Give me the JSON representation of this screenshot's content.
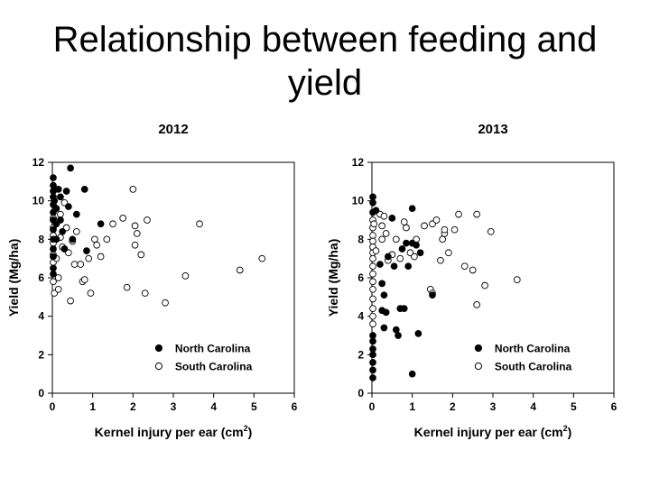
{
  "slide": {
    "title_line1": "Relationship between feeding and",
    "title_line2": "yield"
  },
  "chart_data": [
    {
      "type": "scatter",
      "title": "2012",
      "xlabel": "Kernel injury per ear (cm",
      "xlabel_sup": "2",
      "xlabel_suffix": ")",
      "ylabel": "Yield (Mg/ha)",
      "xlim": [
        0,
        6
      ],
      "ylim": [
        0,
        12
      ],
      "xticks": [
        "0",
        "1",
        "2",
        "3",
        "4",
        "5",
        "6"
      ],
      "yticks": [
        "0",
        "2",
        "4",
        "6",
        "8",
        "10",
        "12"
      ],
      "legend_position": "bottom-right",
      "series": [
        {
          "name": "North Carolina",
          "marker": "filled-circle",
          "color": "#000000",
          "points": [
            [
              0,
              11.2
            ],
            [
              0,
              10.8
            ],
            [
              0,
              10.5
            ],
            [
              0,
              10.2
            ],
            [
              0,
              9.8
            ],
            [
              0,
              9.4
            ],
            [
              0,
              9.0
            ],
            [
              0,
              8.5
            ],
            [
              0,
              8.0
            ],
            [
              0,
              7.5
            ],
            [
              0,
              7.1
            ],
            [
              0,
              6.5
            ],
            [
              0,
              6.2
            ],
            [
              0.05,
              10.0
            ],
            [
              0.1,
              9.6
            ],
            [
              0.1,
              8.8
            ],
            [
              0.1,
              8.0
            ],
            [
              0.15,
              10.6
            ],
            [
              0.2,
              10.2
            ],
            [
              0.2,
              9.0
            ],
            [
              0.25,
              8.4
            ],
            [
              0.3,
              7.5
            ],
            [
              0.35,
              10.5
            ],
            [
              0.4,
              9.7
            ],
            [
              0.45,
              11.7
            ],
            [
              0.5,
              8.0
            ],
            [
              0.6,
              9.3
            ],
            [
              0.8,
              10.6
            ],
            [
              0.85,
              7.4
            ],
            [
              1.2,
              8.8
            ]
          ]
        },
        {
          "name": "South Carolina",
          "marker": "open-circle",
          "color": "#ffffff",
          "points": [
            [
              0,
              9.1
            ],
            [
              0,
              8.6
            ],
            [
              0,
              8.2
            ],
            [
              0,
              7.8
            ],
            [
              0,
              7.2
            ],
            [
              0,
              6.8
            ],
            [
              0,
              5.8
            ],
            [
              0.05,
              5.2
            ],
            [
              0.1,
              8.9
            ],
            [
              0.1,
              7.0
            ],
            [
              0.15,
              6.0
            ],
            [
              0.15,
              5.4
            ],
            [
              0.2,
              9.3
            ],
            [
              0.2,
              8.1
            ],
            [
              0.25,
              7.6
            ],
            [
              0.3,
              9.9
            ],
            [
              0.35,
              8.6
            ],
            [
              0.4,
              7.3
            ],
            [
              0.45,
              4.8
            ],
            [
              0.5,
              7.9
            ],
            [
              0.55,
              6.7
            ],
            [
              0.6,
              8.4
            ],
            [
              0.7,
              6.7
            ],
            [
              0.75,
              5.8
            ],
            [
              0.8,
              5.9
            ],
            [
              0.9,
              7.0
            ],
            [
              0.95,
              5.2
            ],
            [
              1.05,
              8.0
            ],
            [
              1.1,
              7.7
            ],
            [
              1.2,
              7.1
            ],
            [
              1.35,
              8.0
            ],
            [
              1.5,
              8.8
            ],
            [
              1.75,
              9.1
            ],
            [
              1.85,
              5.5
            ],
            [
              2.0,
              10.6
            ],
            [
              2.05,
              8.7
            ],
            [
              2.05,
              7.7
            ],
            [
              2.1,
              8.3
            ],
            [
              2.2,
              7.2
            ],
            [
              2.3,
              5.2
            ],
            [
              2.35,
              9.0
            ],
            [
              2.8,
              4.7
            ],
            [
              3.3,
              6.1
            ],
            [
              3.65,
              8.8
            ],
            [
              4.65,
              6.4
            ],
            [
              5.2,
              7.0
            ]
          ]
        }
      ]
    },
    {
      "type": "scatter",
      "title": "2013",
      "xlabel": "Kernel injury per ear (cm",
      "xlabel_sup": "2",
      "xlabel_suffix": ")",
      "ylabel": "Yield (Mg/ha)",
      "xlim": [
        0,
        6
      ],
      "ylim": [
        0,
        12
      ],
      "xticks": [
        "0",
        "1",
        "2",
        "3",
        "4",
        "5",
        "6"
      ],
      "yticks": [
        "0",
        "2",
        "4",
        "6",
        "8",
        "10",
        "12"
      ],
      "legend_position": "bottom-right",
      "series": [
        {
          "name": "North Carolina",
          "marker": "filled-circle",
          "color": "#000000",
          "points": [
            [
              0,
              10.2
            ],
            [
              0,
              9.9
            ],
            [
              0,
              9.4
            ],
            [
              0,
              3.0
            ],
            [
              0,
              2.7
            ],
            [
              0,
              2.3
            ],
            [
              0,
              2.0
            ],
            [
              0,
              1.6
            ],
            [
              0,
              1.2
            ],
            [
              0,
              0.8
            ],
            [
              0.1,
              9.5
            ],
            [
              0.2,
              6.7
            ],
            [
              0.25,
              5.7
            ],
            [
              0.25,
              4.3
            ],
            [
              0.3,
              5.1
            ],
            [
              0.3,
              3.4
            ],
            [
              0.35,
              4.2
            ],
            [
              0.4,
              7.1
            ],
            [
              0.5,
              9.1
            ],
            [
              0.55,
              6.6
            ],
            [
              0.6,
              3.3
            ],
            [
              0.65,
              3.0
            ],
            [
              0.7,
              4.4
            ],
            [
              0.75,
              7.5
            ],
            [
              0.8,
              4.4
            ],
            [
              0.85,
              7.8
            ],
            [
              0.9,
              6.6
            ],
            [
              1.0,
              9.6
            ],
            [
              1.0,
              7.8
            ],
            [
              1.0,
              1.0
            ],
            [
              1.1,
              7.7
            ],
            [
              1.15,
              3.1
            ],
            [
              1.2,
              7.3
            ],
            [
              1.5,
              5.1
            ]
          ]
        },
        {
          "name": "South Carolina",
          "marker": "open-circle",
          "color": "#ffffff",
          "points": [
            [
              0,
              9.0
            ],
            [
              0,
              8.6
            ],
            [
              0,
              8.2
            ],
            [
              0,
              7.9
            ],
            [
              0,
              7.6
            ],
            [
              0,
              7.3
            ],
            [
              0,
              7.0
            ],
            [
              0,
              6.6
            ],
            [
              0,
              6.2
            ],
            [
              0,
              5.8
            ],
            [
              0,
              5.4
            ],
            [
              0,
              4.9
            ],
            [
              0,
              4.4
            ],
            [
              0,
              4.0
            ],
            [
              0,
              3.6
            ],
            [
              0.05,
              8.8
            ],
            [
              0.1,
              7.4
            ],
            [
              0.2,
              9.3
            ],
            [
              0.25,
              8.7
            ],
            [
              0.25,
              8.0
            ],
            [
              0.3,
              9.2
            ],
            [
              0.35,
              8.3
            ],
            [
              0.4,
              6.9
            ],
            [
              0.5,
              7.2
            ],
            [
              0.6,
              8.0
            ],
            [
              0.7,
              7.0
            ],
            [
              0.8,
              8.9
            ],
            [
              0.85,
              8.6
            ],
            [
              0.95,
              7.3
            ],
            [
              1.05,
              7.1
            ],
            [
              1.1,
              8.0
            ],
            [
              1.3,
              8.7
            ],
            [
              1.45,
              5.4
            ],
            [
              1.5,
              5.2
            ],
            [
              1.5,
              8.8
            ],
            [
              1.6,
              9.0
            ],
            [
              1.7,
              6.9
            ],
            [
              1.75,
              8.0
            ],
            [
              1.8,
              8.3
            ],
            [
              1.8,
              8.5
            ],
            [
              1.9,
              7.3
            ],
            [
              2.05,
              8.5
            ],
            [
              2.15,
              9.3
            ],
            [
              2.3,
              6.6
            ],
            [
              2.5,
              6.4
            ],
            [
              2.6,
              4.6
            ],
            [
              2.6,
              9.3
            ],
            [
              2.8,
              5.6
            ],
            [
              2.95,
              8.4
            ],
            [
              3.6,
              5.9
            ]
          ]
        }
      ]
    }
  ]
}
